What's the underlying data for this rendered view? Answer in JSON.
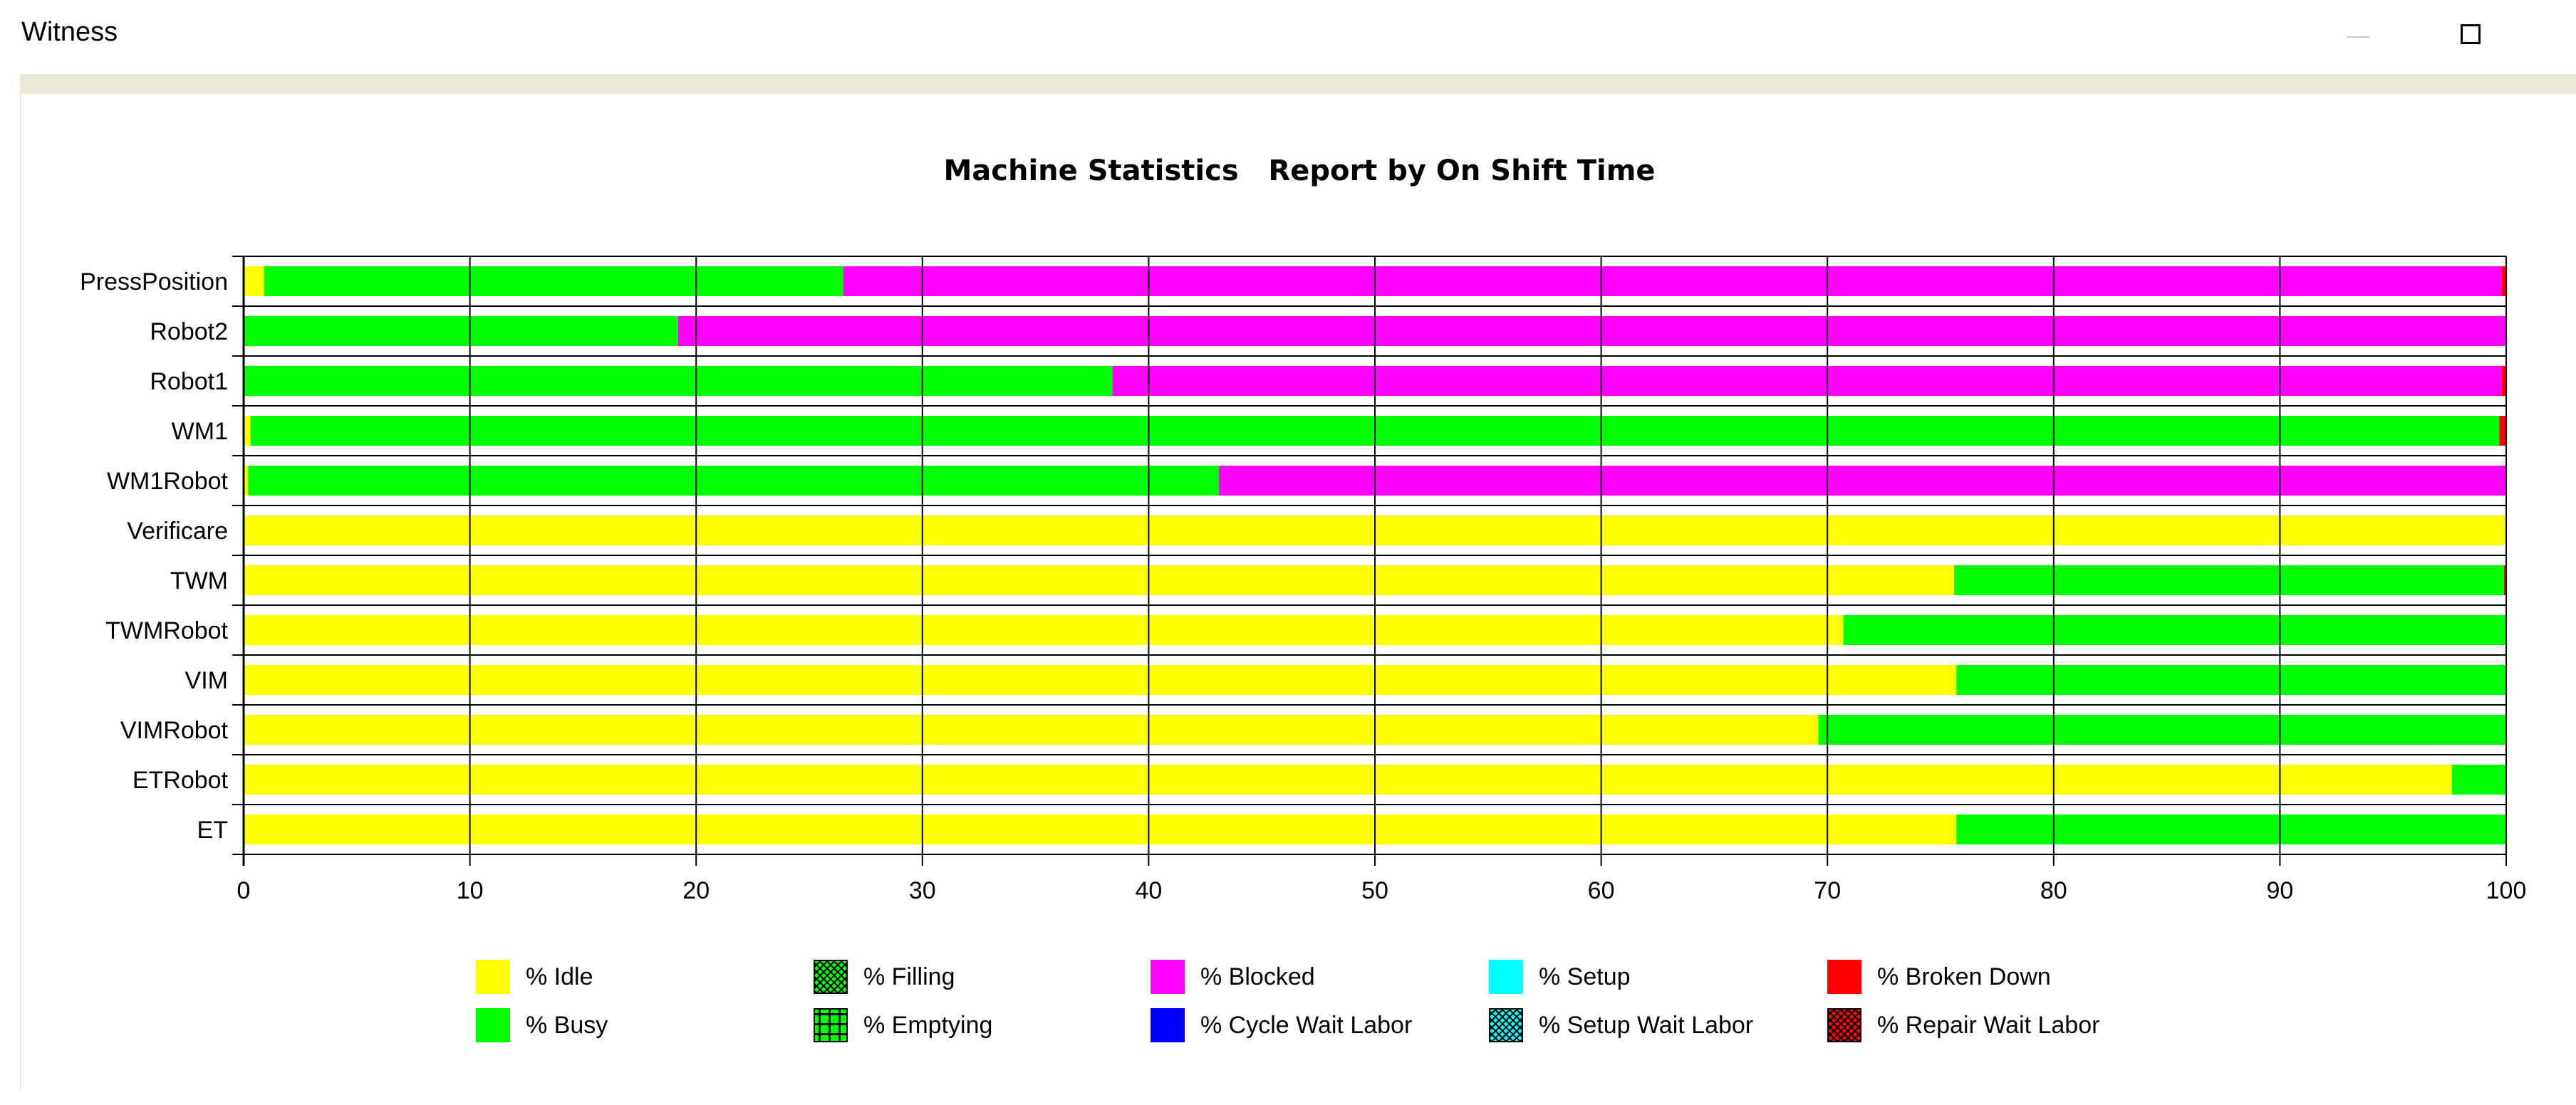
{
  "window": {
    "title": "Witness"
  },
  "chart_data": {
    "type": "bar",
    "orientation": "horizontal",
    "stacked": true,
    "title": "Machine Statistics   Report by On Shift Time",
    "xlabel": "",
    "ylabel": "",
    "xlim": [
      0,
      100
    ],
    "xticks": [
      0,
      10,
      20,
      30,
      40,
      50,
      60,
      70,
      80,
      90,
      100
    ],
    "grid": true,
    "legend_position": "bottom",
    "categories": [
      "PressPosition",
      "Robot2",
      "Robot1",
      "WM1",
      "WM1Robot",
      "Verificare",
      "TWM",
      "TWMRobot",
      "VIM",
      "VIMRobot",
      "ETRobot",
      "ET"
    ],
    "series": [
      {
        "name": "% Idle",
        "color": "#ffff00",
        "values": [
          0.9,
          0,
          0,
          0.3,
          0.2,
          100,
          75.6,
          70.7,
          75.7,
          69.6,
          97.6,
          75.7
        ]
      },
      {
        "name": "% Busy",
        "color": "#00ff00",
        "values": [
          25.6,
          19.2,
          38.4,
          99.4,
          42.9,
          0,
          24.3,
          29.3,
          24.3,
          30.4,
          2.4,
          24.3
        ]
      },
      {
        "name": "% Filling",
        "color": "#00ff00",
        "values": [
          0,
          0,
          0,
          0,
          0,
          0,
          0,
          0,
          0,
          0,
          0,
          0
        ]
      },
      {
        "name": "% Emptying",
        "color": "#00ff00",
        "values": [
          0,
          0,
          0,
          0,
          0,
          0,
          0,
          0,
          0,
          0,
          0,
          0
        ]
      },
      {
        "name": "% Blocked",
        "color": "#ff00ff",
        "values": [
          73.3,
          80.8,
          61.4,
          0,
          56.9,
          0,
          0,
          0,
          0,
          0,
          0,
          0
        ]
      },
      {
        "name": "% Cycle Wait Labor",
        "color": "#0000ff",
        "values": [
          0,
          0,
          0,
          0,
          0,
          0,
          0,
          0,
          0,
          0,
          0,
          0
        ]
      },
      {
        "name": "% Setup",
        "color": "#00ffff",
        "values": [
          0,
          0,
          0,
          0,
          0,
          0,
          0,
          0,
          0,
          0,
          0,
          0
        ]
      },
      {
        "name": "% Setup Wait Labor",
        "color": "#00ffff",
        "values": [
          0,
          0,
          0,
          0,
          0,
          0,
          0,
          0,
          0,
          0,
          0,
          0
        ]
      },
      {
        "name": "% Broken Down",
        "color": "#ff0000",
        "values": [
          0.2,
          0,
          0.2,
          0.3,
          0,
          0,
          0.1,
          0,
          0,
          0,
          0,
          0
        ]
      },
      {
        "name": "% Repair Wait Labor",
        "color": "#ff0000",
        "values": [
          0,
          0,
          0,
          0,
          0,
          0,
          0,
          0,
          0,
          0,
          0,
          0
        ]
      }
    ],
    "legend": [
      {
        "name": "% Idle",
        "color": "#ffff00",
        "pattern": "solid"
      },
      {
        "name": "% Busy",
        "color": "#00ff00",
        "pattern": "solid"
      },
      {
        "name": "% Filling",
        "color": "#00ff00",
        "pattern": "crosshatch-dense"
      },
      {
        "name": "% Emptying",
        "color": "#00ff00",
        "pattern": "grid"
      },
      {
        "name": "% Blocked",
        "color": "#ff00ff",
        "pattern": "solid"
      },
      {
        "name": "% Cycle Wait Labor",
        "color": "#0000ff",
        "pattern": "solid"
      },
      {
        "name": "% Setup",
        "color": "#00ffff",
        "pattern": "solid"
      },
      {
        "name": "% Setup Wait Labor",
        "color": "#00ffff",
        "pattern": "crosshatch-dense"
      },
      {
        "name": "% Broken Down",
        "color": "#ff0000",
        "pattern": "solid"
      },
      {
        "name": "% Repair Wait Labor",
        "color": "#ff0000",
        "pattern": "crosshatch-dense"
      }
    ]
  }
}
